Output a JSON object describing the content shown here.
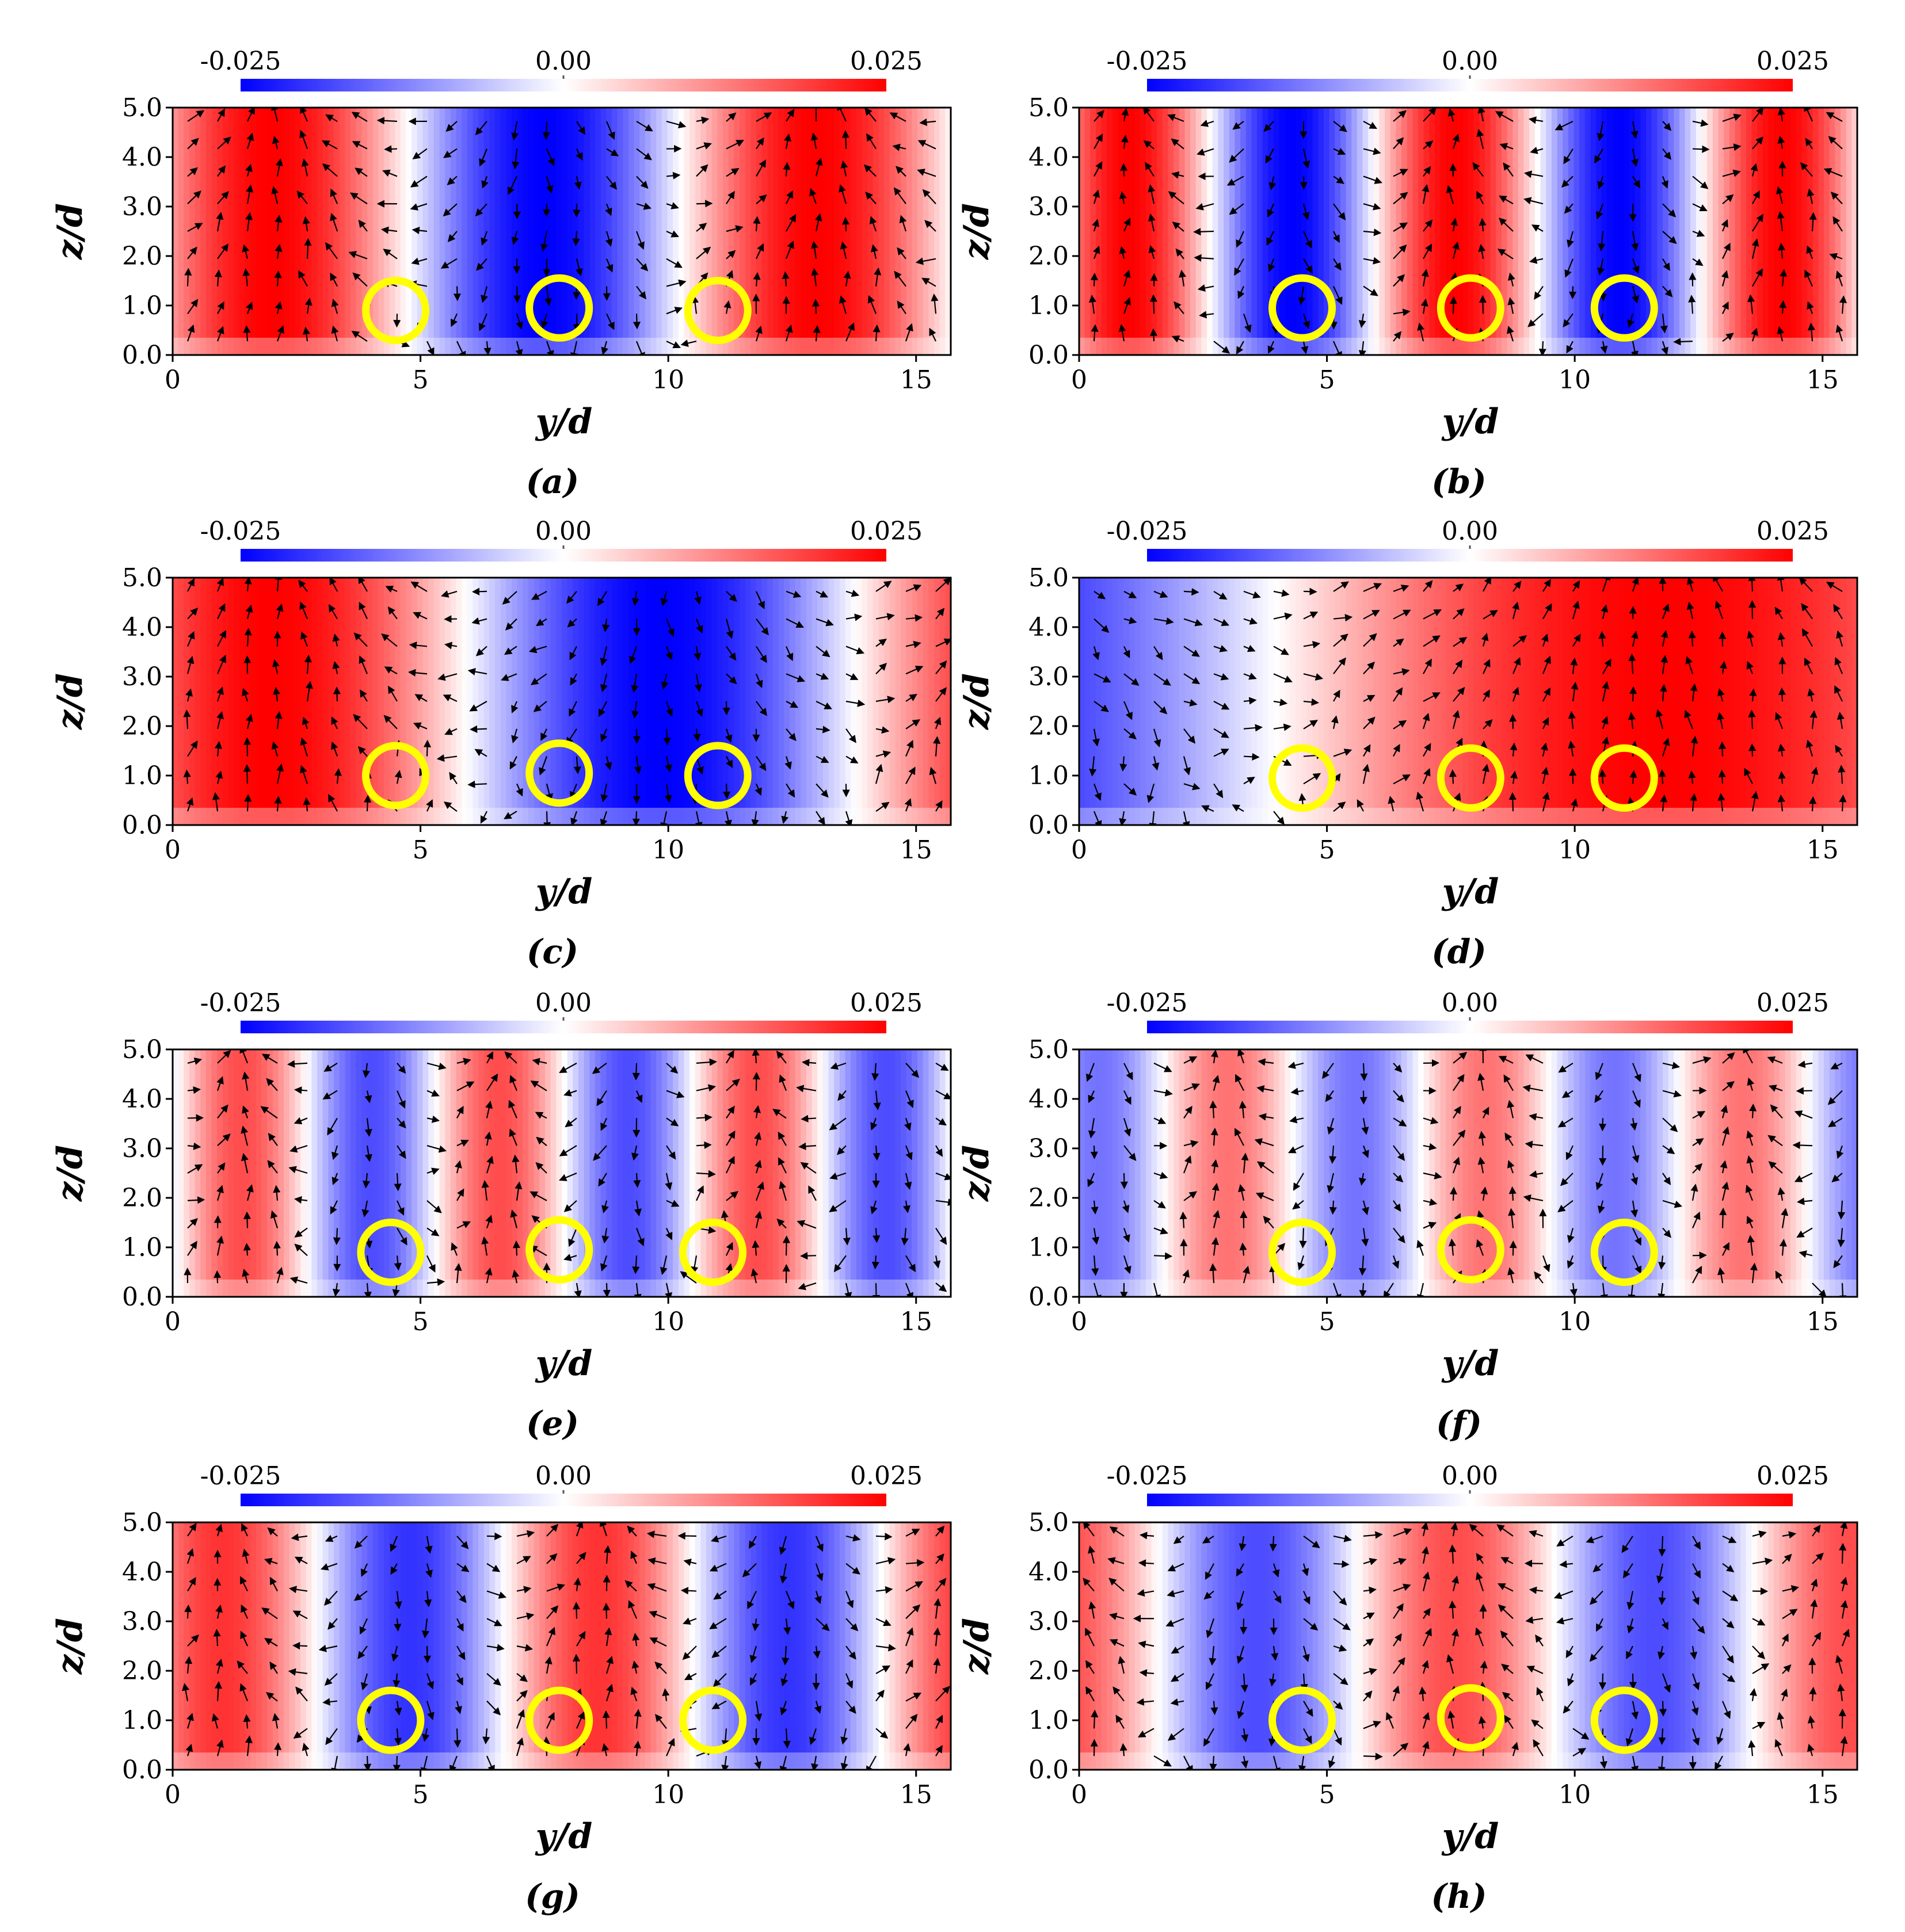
{
  "figure": {
    "colorbar": {
      "min_label": "-0.025",
      "mid_label": "0.00",
      "max_label": "0.025",
      "min": -0.025,
      "max": 0.025,
      "colors": {
        "negative": "#0000ff",
        "zero": "#ffffff",
        "positive": "#ff0000"
      }
    },
    "circle_color": "#ffff00",
    "vector_color": "#000000"
  },
  "chart_data": [
    {
      "type": "heatmap",
      "panel_label": "(a)",
      "title": "",
      "xlabel": "y/d",
      "ylabel": "z/d",
      "xlim": [
        0,
        15.7
      ],
      "ylim": [
        0,
        5.0
      ],
      "xticks": [
        0,
        5,
        10,
        15
      ],
      "xtick_labels": [
        "0",
        "5",
        "10",
        "15"
      ],
      "yticks": [
        0.0,
        1.0,
        2.0,
        3.0,
        4.0,
        5.0
      ],
      "ytick_labels": [
        "0.0",
        "1.0",
        "2.0",
        "3.0",
        "4.0",
        "5.0"
      ],
      "colorbar_range": [
        -0.025,
        0.025
      ],
      "field_profile": {
        "period": 11.0,
        "phase": 2.0,
        "amplitude": 1.0
      },
      "circles": [
        {
          "y": 4.5,
          "z": 0.9
        },
        {
          "y": 7.8,
          "z": 0.95
        },
        {
          "y": 11.0,
          "z": 0.9
        }
      ]
    },
    {
      "type": "heatmap",
      "panel_label": "(b)",
      "title": "",
      "xlabel": "y/d",
      "ylabel": "z/d",
      "xlim": [
        0,
        15.7
      ],
      "ylim": [
        0,
        5.0
      ],
      "xticks": [
        0,
        5,
        10,
        15
      ],
      "xtick_labels": [
        "0",
        "5",
        "10",
        "15"
      ],
      "yticks": [
        0.0,
        1.0,
        2.0,
        3.0,
        4.0,
        5.0
      ],
      "ytick_labels": [
        "0.0",
        "1.0",
        "2.0",
        "3.0",
        "4.0",
        "5.0"
      ],
      "colorbar_range": [
        -0.025,
        0.025
      ],
      "field_profile": {
        "period": 6.6,
        "phase": 1.0,
        "amplitude": 1.0
      },
      "circles": [
        {
          "y": 4.5,
          "z": 0.95
        },
        {
          "y": 7.9,
          "z": 0.95
        },
        {
          "y": 11.0,
          "z": 0.95
        }
      ]
    },
    {
      "type": "heatmap",
      "panel_label": "(c)",
      "title": "",
      "xlabel": "y/d",
      "ylabel": "z/d",
      "xlim": [
        0,
        15.7
      ],
      "ylim": [
        0,
        5.0
      ],
      "xticks": [
        0,
        5,
        10,
        15
      ],
      "xtick_labels": [
        "0",
        "5",
        "10",
        "15"
      ],
      "yticks": [
        0.0,
        1.0,
        2.0,
        3.0,
        4.0,
        5.0
      ],
      "ytick_labels": [
        "0.0",
        "1.0",
        "2.0",
        "3.0",
        "4.0",
        "5.0"
      ],
      "colorbar_range": [
        -0.025,
        0.025
      ],
      "field_profile": {
        "period": 15.7,
        "phase": 2.0,
        "amplitude": 1.0
      },
      "circles": [
        {
          "y": 4.5,
          "z": 1.0
        },
        {
          "y": 7.8,
          "z": 1.05
        },
        {
          "y": 11.0,
          "z": 1.0
        }
      ]
    },
    {
      "type": "heatmap",
      "panel_label": "(d)",
      "title": "",
      "xlabel": "y/d",
      "ylabel": "z/d",
      "xlim": [
        0,
        15.7
      ],
      "ylim": [
        0,
        5.0
      ],
      "xticks": [
        0,
        5,
        10,
        15
      ],
      "xtick_labels": [
        "0",
        "5",
        "10",
        "15"
      ],
      "yticks": [
        0.0,
        1.0,
        2.0,
        3.0,
        4.0,
        5.0
      ],
      "ytick_labels": [
        "0.0",
        "1.0",
        "2.0",
        "3.0",
        "4.0",
        "5.0"
      ],
      "colorbar_range": [
        -0.025,
        0.025
      ],
      "field_profile": {
        "period": 31.4,
        "phase": 11.8,
        "amplitude": 1.0
      },
      "circles": [
        {
          "y": 4.5,
          "z": 0.95
        },
        {
          "y": 7.9,
          "z": 0.95
        },
        {
          "y": 11.0,
          "z": 0.95
        }
      ]
    },
    {
      "type": "heatmap",
      "panel_label": "(e)",
      "title": "",
      "xlabel": "y/d",
      "ylabel": "z/d",
      "xlim": [
        0,
        15.7
      ],
      "ylim": [
        0,
        5.0
      ],
      "xticks": [
        0,
        5,
        10,
        15
      ],
      "xtick_labels": [
        "0",
        "5",
        "10",
        "15"
      ],
      "yticks": [
        0.0,
        1.0,
        2.0,
        3.0,
        4.0,
        5.0
      ],
      "ytick_labels": [
        "0.0",
        "1.0",
        "2.0",
        "3.0",
        "4.0",
        "5.0"
      ],
      "colorbar_range": [
        -0.025,
        0.025
      ],
      "field_profile": {
        "period": 5.2,
        "phase": 1.4,
        "amplitude": 0.7
      },
      "circles": [
        {
          "y": 4.4,
          "z": 0.9
        },
        {
          "y": 7.8,
          "z": 0.95
        },
        {
          "y": 10.9,
          "z": 0.9
        }
      ]
    },
    {
      "type": "heatmap",
      "panel_label": "(f)",
      "title": "",
      "xlabel": "y/d",
      "ylabel": "z/d",
      "xlim": [
        0,
        15.7
      ],
      "ylim": [
        0,
        5.0
      ],
      "xticks": [
        0,
        5,
        10,
        15
      ],
      "xtick_labels": [
        "0",
        "5",
        "10",
        "15"
      ],
      "yticks": [
        0.0,
        1.0,
        2.0,
        3.0,
        4.0,
        5.0
      ],
      "ytick_labels": [
        "0.0",
        "1.0",
        "2.0",
        "3.0",
        "4.0",
        "5.0"
      ],
      "colorbar_range": [
        -0.025,
        0.025
      ],
      "field_profile": {
        "period": 5.2,
        "phase": 3.0,
        "amplitude": 0.55
      },
      "circles": [
        {
          "y": 4.5,
          "z": 0.9
        },
        {
          "y": 7.9,
          "z": 0.95
        },
        {
          "y": 11.0,
          "z": 0.9
        }
      ]
    },
    {
      "type": "heatmap",
      "panel_label": "(g)",
      "title": "",
      "xlabel": "y/d",
      "ylabel": "z/d",
      "xlim": [
        0,
        15.7
      ],
      "ylim": [
        0,
        5.0
      ],
      "xticks": [
        0,
        5,
        10,
        15
      ],
      "xtick_labels": [
        "0",
        "5",
        "10",
        "15"
      ],
      "yticks": [
        0.0,
        1.0,
        2.0,
        3.0,
        4.0,
        5.0
      ],
      "ytick_labels": [
        "0.0",
        "1.0",
        "2.0",
        "3.0",
        "4.0",
        "5.0"
      ],
      "colorbar_range": [
        -0.025,
        0.025
      ],
      "field_profile": {
        "period": 7.6,
        "phase": 1.0,
        "amplitude": 0.8
      },
      "circles": [
        {
          "y": 4.4,
          "z": 1.0
        },
        {
          "y": 7.8,
          "z": 1.0
        },
        {
          "y": 10.9,
          "z": 1.0
        }
      ]
    },
    {
      "type": "heatmap",
      "panel_label": "(h)",
      "title": "",
      "xlabel": "y/d",
      "ylabel": "z/d",
      "xlim": [
        0,
        15.7
      ],
      "ylim": [
        0,
        5.0
      ],
      "xticks": [
        0,
        5,
        10,
        15
      ],
      "xtick_labels": [
        "0",
        "5",
        "10",
        "15"
      ],
      "yticks": [
        0.0,
        1.0,
        2.0,
        3.0,
        4.0,
        5.0
      ],
      "ytick_labels": [
        "0.0",
        "1.0",
        "2.0",
        "3.0",
        "4.0",
        "5.0"
      ],
      "colorbar_range": [
        -0.025,
        0.025
      ],
      "field_profile": {
        "period": 8.0,
        "phase": 7.6,
        "amplitude": 0.7
      },
      "circles": [
        {
          "y": 4.5,
          "z": 1.0
        },
        {
          "y": 7.9,
          "z": 1.05
        },
        {
          "y": 11.0,
          "z": 1.0
        }
      ]
    }
  ]
}
